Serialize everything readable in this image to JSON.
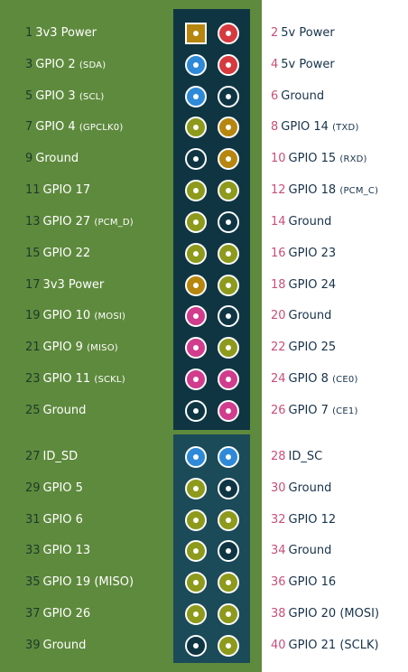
{
  "colors": {
    "left_panel": "#5e8a3d",
    "header_block": "#0f3543",
    "extra_block": "#1b4a58",
    "power_3v3": "#b6860f",
    "power_5v": "#d63a3f",
    "ground": "#0f3543",
    "gpio": "#8d9a1c",
    "i2c": "#2e8ad8",
    "spi": "#d13c8e",
    "uart": "#b6860f",
    "left_number": "#1d3a2c",
    "right_number": "#c84f79",
    "right_text": "#17324a"
  },
  "pins": [
    {
      "num": "1",
      "name": "3v3 Power",
      "note": "",
      "type": "power_3v3",
      "shape": "square"
    },
    {
      "num": "2",
      "name": "5v Power",
      "note": "",
      "type": "power_5v"
    },
    {
      "num": "3",
      "name": "GPIO 2",
      "note": "(SDA)",
      "type": "i2c"
    },
    {
      "num": "4",
      "name": "5v Power",
      "note": "",
      "type": "power_5v"
    },
    {
      "num": "5",
      "name": "GPIO 3",
      "note": "(SCL)",
      "type": "i2c"
    },
    {
      "num": "6",
      "name": "Ground",
      "note": "",
      "type": "ground"
    },
    {
      "num": "7",
      "name": "GPIO 4",
      "note": "(GPCLK0)",
      "type": "gpio"
    },
    {
      "num": "8",
      "name": "GPIO 14",
      "note": "(TXD)",
      "type": "uart"
    },
    {
      "num": "9",
      "name": "Ground",
      "note": "",
      "type": "ground"
    },
    {
      "num": "10",
      "name": "GPIO 15",
      "note": "(RXD)",
      "type": "uart"
    },
    {
      "num": "11",
      "name": "GPIO 17",
      "note": "",
      "type": "gpio"
    },
    {
      "num": "12",
      "name": "GPIO 18",
      "note": "(PCM_C)",
      "type": "gpio"
    },
    {
      "num": "13",
      "name": "GPIO 27",
      "note": "(PCM_D)",
      "type": "gpio"
    },
    {
      "num": "14",
      "name": "Ground",
      "note": "",
      "type": "ground"
    },
    {
      "num": "15",
      "name": "GPIO 22",
      "note": "",
      "type": "gpio"
    },
    {
      "num": "16",
      "name": "GPIO 23",
      "note": "",
      "type": "gpio"
    },
    {
      "num": "17",
      "name": "3v3 Power",
      "note": "",
      "type": "power_3v3"
    },
    {
      "num": "18",
      "name": "GPIO 24",
      "note": "",
      "type": "gpio"
    },
    {
      "num": "19",
      "name": "GPIO 10",
      "note": "(MOSI)",
      "type": "spi"
    },
    {
      "num": "20",
      "name": "Ground",
      "note": "",
      "type": "ground"
    },
    {
      "num": "21",
      "name": "GPIO 9",
      "note": "(MISO)",
      "type": "spi"
    },
    {
      "num": "22",
      "name": "GPIO 25",
      "note": "",
      "type": "gpio"
    },
    {
      "num": "23",
      "name": "GPIO 11",
      "note": "(SCKL)",
      "type": "spi"
    },
    {
      "num": "24",
      "name": "GPIO 8",
      "note": "(CE0)",
      "type": "spi"
    },
    {
      "num": "25",
      "name": "Ground",
      "note": "",
      "type": "ground"
    },
    {
      "num": "26",
      "name": "GPIO 7",
      "note": "(CE1)",
      "type": "spi"
    },
    {
      "num": "27",
      "name": "ID_SD",
      "note": "",
      "type": "i2c"
    },
    {
      "num": "28",
      "name": "ID_SC",
      "note": "",
      "type": "i2c"
    },
    {
      "num": "29",
      "name": "GPIO 5",
      "note": "",
      "type": "gpio"
    },
    {
      "num": "30",
      "name": "Ground",
      "note": "",
      "type": "ground"
    },
    {
      "num": "31",
      "name": "GPIO 6",
      "note": "",
      "type": "gpio"
    },
    {
      "num": "32",
      "name": "GPIO 12",
      "note": "",
      "type": "gpio"
    },
    {
      "num": "33",
      "name": "GPIO 13",
      "note": "",
      "type": "gpio"
    },
    {
      "num": "34",
      "name": "Ground",
      "note": "",
      "type": "ground"
    },
    {
      "num": "35",
      "name": "GPIO 19 (MISO)",
      "note": "",
      "type": "gpio"
    },
    {
      "num": "36",
      "name": "GPIO 16",
      "note": "",
      "type": "gpio"
    },
    {
      "num": "37",
      "name": "GPIO 26",
      "note": "",
      "type": "gpio"
    },
    {
      "num": "38",
      "name": "GPIO 20 (MOSI)",
      "note": "",
      "type": "gpio"
    },
    {
      "num": "39",
      "name": "Ground",
      "note": "",
      "type": "ground"
    },
    {
      "num": "40",
      "name": "GPIO 21 (SCLK)",
      "note": "",
      "type": "gpio"
    }
  ]
}
